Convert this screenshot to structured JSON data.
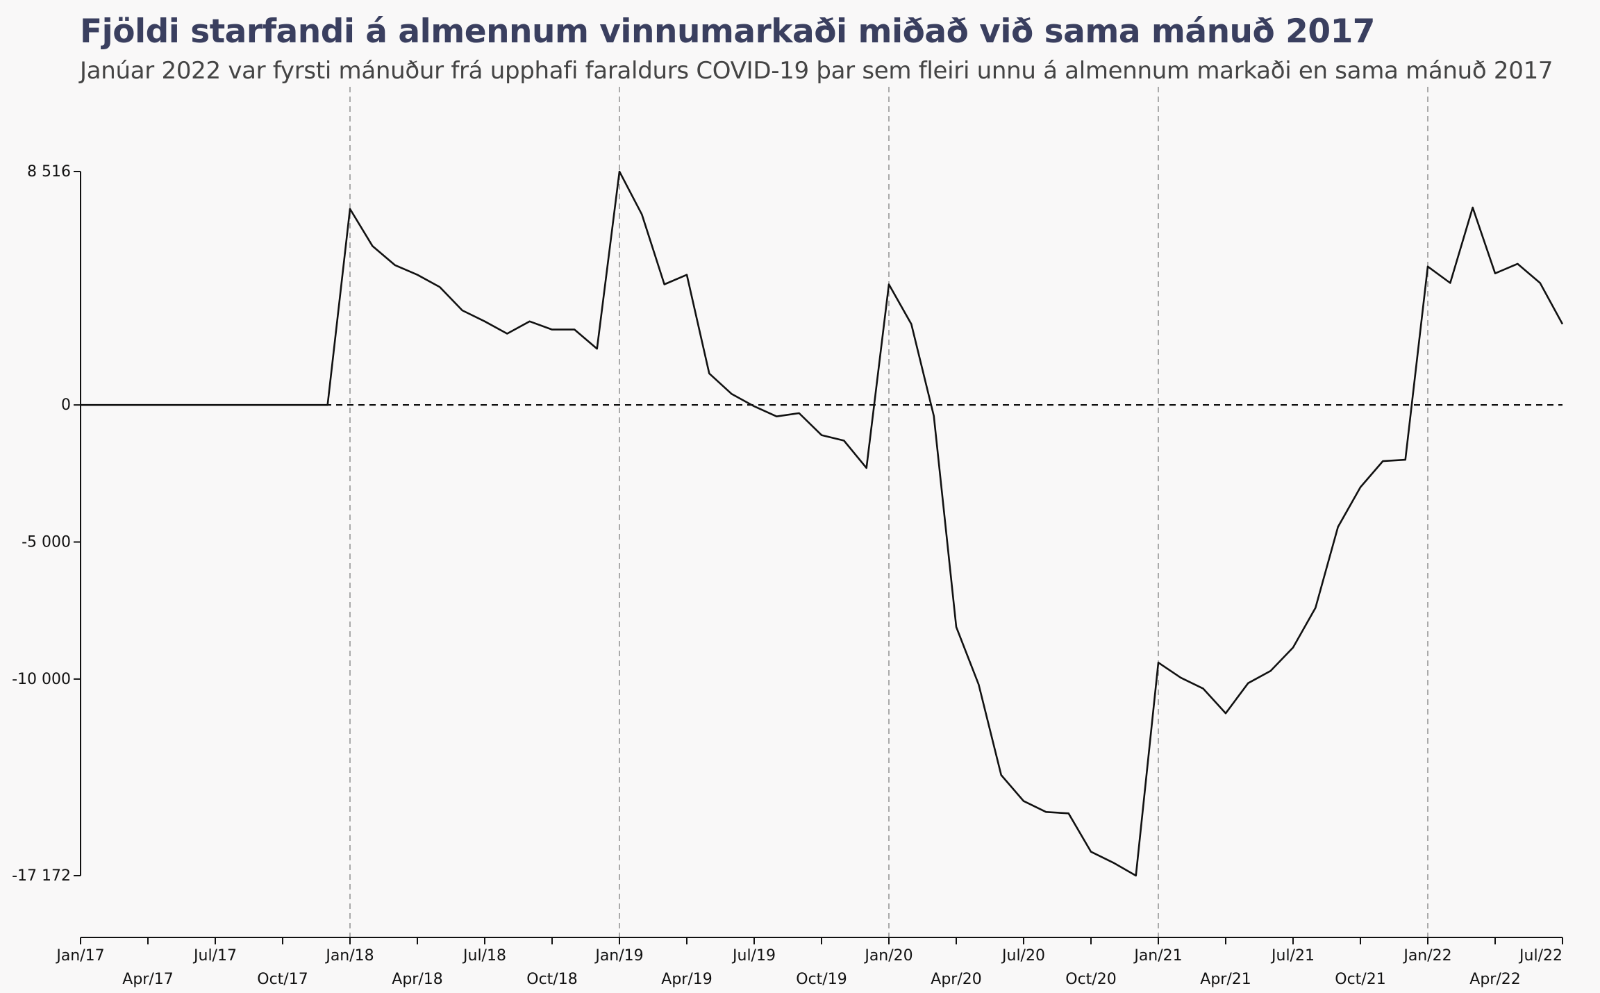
{
  "chart_data": {
    "type": "line",
    "title": "Fjöldi starfandi á almennum vinnumarkaði miðað við sama mánuð 2017",
    "subtitle": "Janúar 2022 var fyrsti mánuður frá upphafi faraldurs COVID-19 þar sem fleiri unnu á almennum markaði en sama mánuð 2017",
    "xlabel": "",
    "ylabel": "",
    "ylim": [
      -17172,
      8516
    ],
    "y_ticks": [
      {
        "value": 8516,
        "label": "8 516"
      },
      {
        "value": 0,
        "label": "0"
      },
      {
        "value": -5000,
        "label": "-5 000"
      },
      {
        "value": -10000,
        "label": "-10 000"
      },
      {
        "value": -17172,
        "label": "-17 172"
      }
    ],
    "x_ticks": [
      {
        "month": "2017-01",
        "label": "Jan/17",
        "row": 0
      },
      {
        "month": "2017-04",
        "label": "Apr/17",
        "row": 1
      },
      {
        "month": "2017-07",
        "label": "Jul/17",
        "row": 0
      },
      {
        "month": "2017-10",
        "label": "Oct/17",
        "row": 1
      },
      {
        "month": "2018-01",
        "label": "Jan/18",
        "row": 0
      },
      {
        "month": "2018-04",
        "label": "Apr/18",
        "row": 1
      },
      {
        "month": "2018-07",
        "label": "Jul/18",
        "row": 0
      },
      {
        "month": "2018-10",
        "label": "Oct/18",
        "row": 1
      },
      {
        "month": "2019-01",
        "label": "Jan/19",
        "row": 0
      },
      {
        "month": "2019-04",
        "label": "Apr/19",
        "row": 1
      },
      {
        "month": "2019-07",
        "label": "Jul/19",
        "row": 0
      },
      {
        "month": "2019-10",
        "label": "Oct/19",
        "row": 1
      },
      {
        "month": "2020-01",
        "label": "Jan/20",
        "row": 0
      },
      {
        "month": "2020-04",
        "label": "Apr/20",
        "row": 1
      },
      {
        "month": "2020-07",
        "label": "Jul/20",
        "row": 0
      },
      {
        "month": "2020-10",
        "label": "Oct/20",
        "row": 1
      },
      {
        "month": "2021-01",
        "label": "Jan/21",
        "row": 0
      },
      {
        "month": "2021-04",
        "label": "Apr/21",
        "row": 1
      },
      {
        "month": "2021-07",
        "label": "Jul/21",
        "row": 0
      },
      {
        "month": "2021-10",
        "label": "Oct/21",
        "row": 1
      },
      {
        "month": "2022-01",
        "label": "Jan/22",
        "row": 0
      },
      {
        "month": "2022-04",
        "label": "Apr/22",
        "row": 1
      },
      {
        "month": "2022-07",
        "label": "Jul/22",
        "row": 0
      }
    ],
    "x_range": [
      "2017-01",
      "2022-07"
    ],
    "vertical_reference_lines": [
      "2018-01",
      "2019-01",
      "2020-01",
      "2021-01",
      "2022-01"
    ],
    "horizontal_reference_line": 0,
    "grid": false,
    "legend": "none",
    "line_color": "#111111",
    "series": [
      {
        "x": [
          "2017-01",
          "2017-02",
          "2017-03",
          "2017-04",
          "2017-05",
          "2017-06",
          "2017-07",
          "2017-08",
          "2017-09",
          "2017-10",
          "2017-11",
          "2017-12",
          "2018-01",
          "2018-02",
          "2018-03",
          "2018-04",
          "2018-05",
          "2018-06",
          "2018-07",
          "2018-08",
          "2018-09",
          "2018-10",
          "2018-11",
          "2018-12",
          "2019-01",
          "2019-02",
          "2019-03",
          "2019-04",
          "2019-05",
          "2019-06",
          "2019-07",
          "2019-08",
          "2019-09",
          "2019-10",
          "2019-11",
          "2019-12",
          "2020-01",
          "2020-02",
          "2020-03",
          "2020-04",
          "2020-05",
          "2020-06",
          "2020-07",
          "2020-08",
          "2020-09",
          "2020-10",
          "2020-11",
          "2020-12",
          "2021-01",
          "2021-02",
          "2021-03",
          "2021-04",
          "2021-05",
          "2021-06",
          "2021-07",
          "2021-08",
          "2021-09",
          "2021-10",
          "2021-11",
          "2021-12",
          "2022-01",
          "2022-02",
          "2022-03",
          "2022-04",
          "2022-05",
          "2022-06",
          "2022-07"
        ],
        "values": [
          0,
          0,
          0,
          0,
          0,
          0,
          0,
          0,
          0,
          0,
          0,
          0,
          7150,
          5800,
          5100,
          4750,
          4300,
          3450,
          3050,
          2600,
          3050,
          2750,
          2750,
          2050,
          8516,
          6950,
          4400,
          4750,
          1150,
          400,
          -50,
          -420,
          -300,
          -1100,
          -1300,
          -2300,
          4400,
          2950,
          -400,
          -8100,
          -10200,
          -13500,
          -14450,
          -14850,
          -14900,
          -16300,
          -16700,
          -17172,
          -9400,
          -9950,
          -10350,
          -11250,
          -10150,
          -9700,
          -8850,
          -7400,
          -4450,
          -3000,
          -2050,
          -2000,
          5050,
          4450,
          7200,
          4800,
          5150,
          4450,
          2950
        ]
      }
    ]
  }
}
